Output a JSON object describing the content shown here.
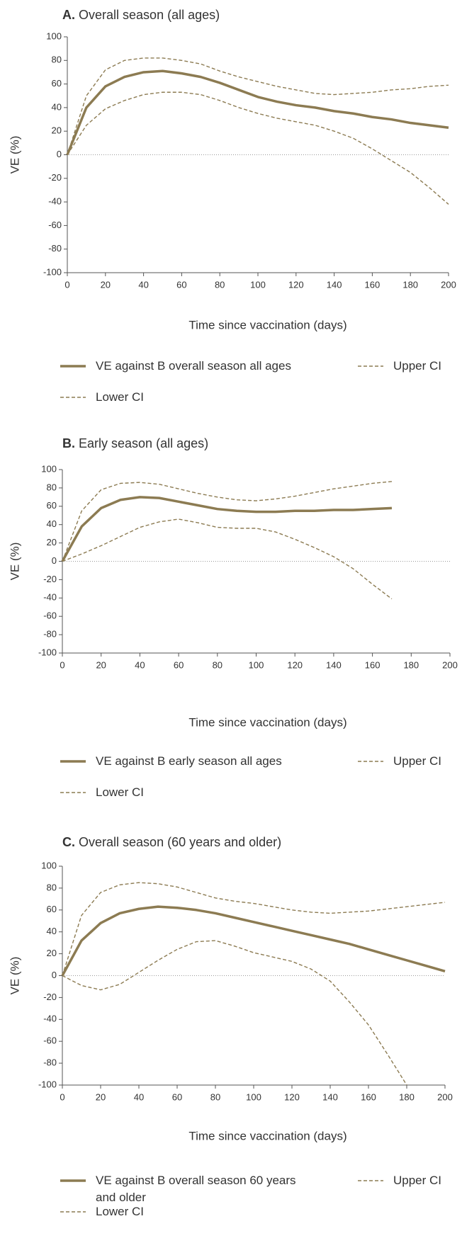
{
  "chart_data": [
    {
      "type": "line",
      "label": "A.",
      "title": "Overall season (all ages)",
      "ylabel": "VE (%)",
      "xlabel": "Time since vaccination (days)",
      "x": [
        0,
        10,
        20,
        30,
        40,
        50,
        60,
        70,
        80,
        90,
        100,
        110,
        120,
        130,
        140,
        150,
        160,
        170,
        180,
        190,
        200
      ],
      "xlim": [
        0,
        200
      ],
      "ylim": [
        -100,
        100
      ],
      "xticks": [
        0,
        20,
        40,
        60,
        80,
        100,
        120,
        140,
        160,
        180,
        200
      ],
      "yticks": [
        -100,
        -80,
        -60,
        -40,
        -20,
        0,
        20,
        40,
        60,
        80,
        100
      ],
      "zero_line": true,
      "series": [
        {
          "name": "VE against B overall season all ages",
          "color": "#8c7b52",
          "style": "solid",
          "values": [
            0,
            40,
            58,
            66,
            70,
            71,
            69,
            66,
            61,
            55,
            49,
            45,
            42,
            40,
            37,
            35,
            32,
            30,
            27,
            25,
            23
          ]
        },
        {
          "name": "Upper CI",
          "color": "#8c7b52",
          "style": "dashed",
          "values": [
            0,
            50,
            72,
            80,
            82,
            82,
            80,
            77,
            71,
            66,
            62,
            58,
            55,
            52,
            51,
            52,
            53,
            55,
            56,
            58,
            59
          ]
        },
        {
          "name": "Lower CI",
          "color": "#8c7b52",
          "style": "dashed",
          "values": [
            0,
            25,
            39,
            46,
            51,
            53,
            53,
            51,
            46,
            40,
            35,
            31,
            28,
            25,
            20,
            14,
            5,
            -5,
            -15,
            -28,
            -42
          ]
        }
      ]
    },
    {
      "type": "line",
      "label": "B.",
      "title": "Early season (all ages)",
      "ylabel": "VE (%)",
      "xlabel": "Time since vaccination (days)",
      "x": [
        0,
        10,
        20,
        30,
        40,
        50,
        60,
        70,
        80,
        90,
        100,
        110,
        120,
        130,
        140,
        150,
        160,
        170,
        180,
        190,
        200
      ],
      "xlim": [
        0,
        200
      ],
      "ylim": [
        -100,
        100
      ],
      "xticks": [
        0,
        20,
        40,
        60,
        80,
        100,
        120,
        140,
        160,
        180,
        200
      ],
      "yticks": [
        -100,
        -80,
        -60,
        -40,
        -20,
        0,
        20,
        40,
        60,
        80,
        100
      ],
      "zero_line": true,
      "series": [
        {
          "name": "VE against B early season all ages",
          "color": "#8c7b52",
          "style": "solid",
          "values": [
            0,
            38,
            58,
            67,
            70,
            69,
            65,
            61,
            57,
            55,
            54,
            54,
            55,
            55,
            56,
            56,
            57,
            58,
            null,
            null,
            null
          ]
        },
        {
          "name": "Upper CI",
          "color": "#8c7b52",
          "style": "dashed",
          "values": [
            0,
            55,
            78,
            85,
            86,
            84,
            79,
            74,
            70,
            67,
            66,
            68,
            71,
            75,
            79,
            82,
            85,
            87,
            null,
            null,
            null
          ]
        },
        {
          "name": "Lower CI",
          "color": "#8c7b52",
          "style": "dashed",
          "values": [
            0,
            8,
            17,
            27,
            37,
            43,
            46,
            42,
            37,
            36,
            36,
            32,
            24,
            15,
            5,
            -8,
            -25,
            -41,
            null,
            null,
            null
          ]
        }
      ]
    },
    {
      "type": "line",
      "label": "C.",
      "title": "Overall season (60 years and older)",
      "ylabel": "VE (%)",
      "xlabel": "Time since vaccination (days)",
      "x": [
        0,
        10,
        20,
        30,
        40,
        50,
        60,
        70,
        80,
        90,
        100,
        110,
        120,
        130,
        140,
        150,
        160,
        170,
        180,
        190,
        200
      ],
      "xlim": [
        0,
        200
      ],
      "ylim": [
        -100,
        100
      ],
      "xticks": [
        0,
        20,
        40,
        60,
        80,
        100,
        120,
        140,
        160,
        180,
        200
      ],
      "yticks": [
        -100,
        -80,
        -60,
        -40,
        -20,
        0,
        20,
        40,
        60,
        80,
        100
      ],
      "zero_line": true,
      "series": [
        {
          "name": "VE against B overall season 60 years and older",
          "color": "#8c7b52",
          "style": "solid",
          "values": [
            0,
            32,
            48,
            57,
            61,
            63,
            62,
            60,
            57,
            53,
            49,
            45,
            41,
            37,
            33,
            29,
            24,
            19,
            14,
            9,
            4
          ]
        },
        {
          "name": "Upper CI",
          "color": "#8c7b52",
          "style": "dashed",
          "values": [
            0,
            55,
            76,
            83,
            85,
            84,
            81,
            76,
            71,
            68,
            66,
            63,
            60,
            58,
            57,
            58,
            59,
            61,
            63,
            65,
            67
          ]
        },
        {
          "name": "Lower CI",
          "color": "#8c7b52",
          "style": "dashed",
          "values": [
            0,
            -9,
            -13,
            -8,
            3,
            14,
            24,
            31,
            32,
            27,
            21,
            17,
            13,
            6,
            -5,
            -24,
            -45,
            -72,
            -100,
            null,
            null
          ]
        }
      ]
    }
  ]
}
